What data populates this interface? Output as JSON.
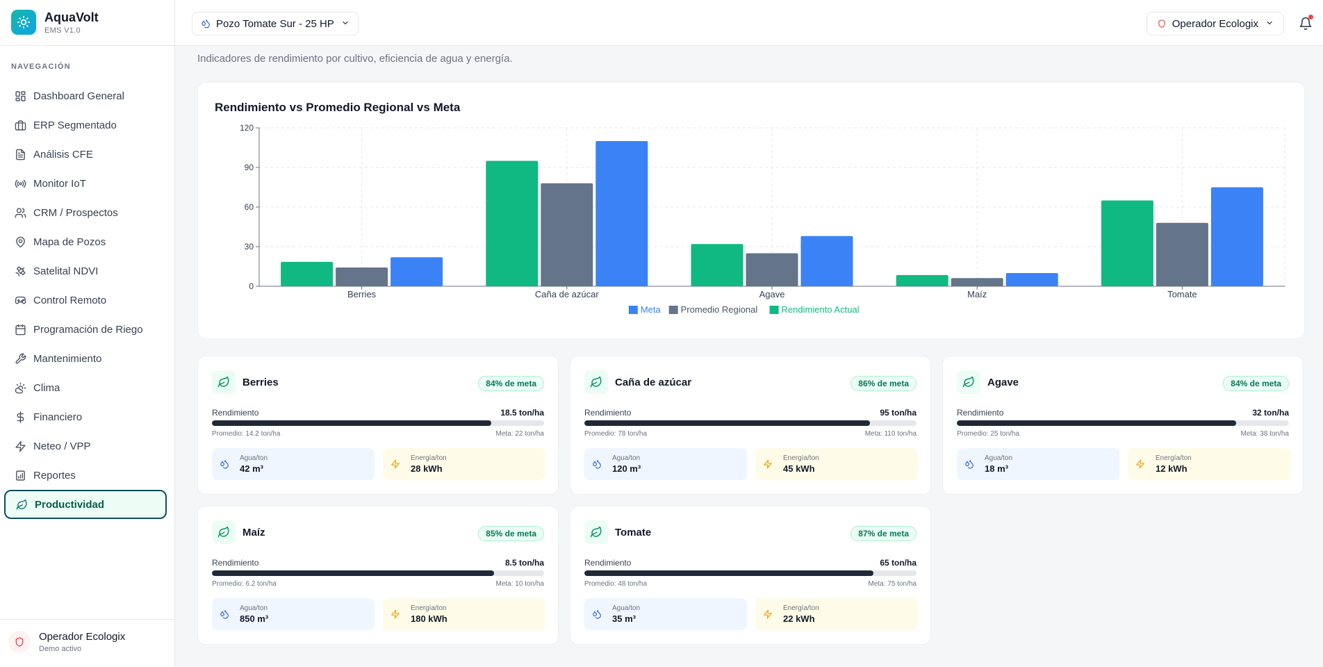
{
  "app": {
    "name": "AquaVolt",
    "version": "EMS V1.0"
  },
  "sidebar": {
    "heading": "NAVEGACIÓN",
    "items": [
      {
        "label": "Dashboard General",
        "icon": "layout-dashboard-icon"
      },
      {
        "label": "ERP Segmentado",
        "icon": "briefcase-icon"
      },
      {
        "label": "Análisis CFE",
        "icon": "file-text-icon"
      },
      {
        "label": "Monitor IoT",
        "icon": "radio-icon"
      },
      {
        "label": "CRM / Prospectos",
        "icon": "users-icon"
      },
      {
        "label": "Mapa de Pozos",
        "icon": "map-pin-icon"
      },
      {
        "label": "Satelital NDVI",
        "icon": "satellite-icon"
      },
      {
        "label": "Control Remoto",
        "icon": "gamepad-icon"
      },
      {
        "label": "Programación de Riego",
        "icon": "calendar-icon"
      },
      {
        "label": "Mantenimiento",
        "icon": "wrench-icon"
      },
      {
        "label": "Clima",
        "icon": "cloud-sun-icon"
      },
      {
        "label": "Financiero",
        "icon": "dollar-icon"
      },
      {
        "label": "Neteo / VPP",
        "icon": "zap-icon"
      },
      {
        "label": "Reportes",
        "icon": "bar-chart-icon"
      },
      {
        "label": "Productividad",
        "icon": "leaf-icon",
        "active": true
      }
    ],
    "user": {
      "name": "Operador Ecologix",
      "status": "Demo activo"
    }
  },
  "topbar": {
    "well": "Pozo Tomate Sur - 25 HP",
    "operator": "Operador Ecologix"
  },
  "page": {
    "subtitle": "Indicadores de rendimiento por cultivo, eficiencia de agua y energía."
  },
  "chart_data": {
    "type": "bar",
    "title": "Rendimiento vs Promedio Regional vs Meta",
    "categories": [
      "Berries",
      "Caña de azúcar",
      "Agave",
      "Maíz",
      "Tomate"
    ],
    "series": [
      {
        "name": "Rendimiento Actual",
        "color": "#10b981",
        "values": [
          18.5,
          95,
          32,
          8.5,
          65
        ]
      },
      {
        "name": "Promedio Regional",
        "color": "#64748b",
        "values": [
          14.2,
          78,
          25,
          6.2,
          48
        ]
      },
      {
        "name": "Meta",
        "color": "#3b82f6",
        "values": [
          22,
          110,
          38,
          10,
          75
        ]
      }
    ],
    "legend_order": [
      "Meta",
      "Promedio Regional",
      "Rendimiento Actual"
    ],
    "ylim": [
      0,
      120
    ],
    "yticks": [
      0,
      30,
      60,
      90,
      120
    ],
    "grid": true,
    "legend": "bottom-center"
  },
  "crops": [
    {
      "name": "Berries",
      "badge": "84% de meta",
      "yield_label": "Rendimiento",
      "yield": "18.5 ton/ha",
      "progress": 0.84,
      "avg": "Promedio: 14.2 ton/ha",
      "goal": "Meta: 22 ton/ha",
      "water_label": "Agua/ton",
      "water": "42 m³",
      "energy_label": "Energía/ton",
      "energy": "28 kWh"
    },
    {
      "name": "Caña de azúcar",
      "badge": "86% de meta",
      "yield_label": "Rendimiento",
      "yield": "95 ton/ha",
      "progress": 0.86,
      "avg": "Promedio: 78 ton/ha",
      "goal": "Meta: 110 ton/ha",
      "water_label": "Agua/ton",
      "water": "120 m³",
      "energy_label": "Energía/ton",
      "energy": "45 kWh"
    },
    {
      "name": "Agave",
      "badge": "84% de meta",
      "yield_label": "Rendimiento",
      "yield": "32 ton/ha",
      "progress": 0.84,
      "avg": "Promedio: 25 ton/ha",
      "goal": "Meta: 38 ton/ha",
      "water_label": "Agua/ton",
      "water": "18 m³",
      "energy_label": "Energía/ton",
      "energy": "12 kWh"
    },
    {
      "name": "Maíz",
      "badge": "85% de meta",
      "yield_label": "Rendimiento",
      "yield": "8.5 ton/ha",
      "progress": 0.85,
      "avg": "Promedio: 6.2 ton/ha",
      "goal": "Meta: 10 ton/ha",
      "water_label": "Agua/ton",
      "water": "850 m³",
      "energy_label": "Energía/ton",
      "energy": "180 kWh"
    },
    {
      "name": "Tomate",
      "badge": "87% de meta",
      "yield_label": "Rendimiento",
      "yield": "65 ton/ha",
      "progress": 0.87,
      "avg": "Promedio: 48 ton/ha",
      "goal": "Meta: 75 ton/ha",
      "water_label": "Agua/ton",
      "water": "35 m³",
      "energy_label": "Energía/ton",
      "energy": "22 kWh"
    }
  ]
}
